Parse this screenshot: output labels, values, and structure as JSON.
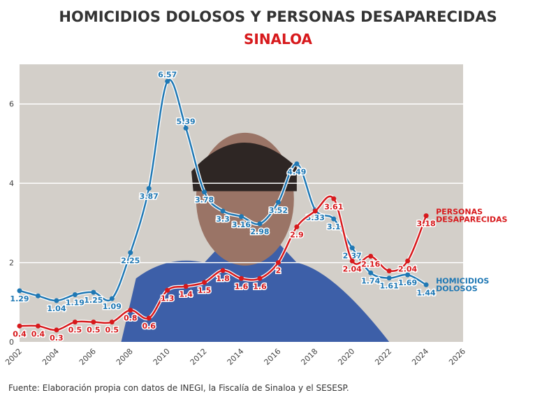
{
  "chart_data": {
    "type": "line",
    "title": "HOMICIDIOS DOLOSOS Y PERSONAS DESAPARECIDAS",
    "subtitle": "SINALOA",
    "x": [
      2002,
      2003,
      2004,
      2005,
      2006,
      2007,
      2008,
      2009,
      2010,
      2011,
      2012,
      2013,
      2014,
      2015,
      2016,
      2017,
      2018,
      2019,
      2020,
      2021,
      2022,
      2023,
      2024
    ],
    "xticks": [
      "2002",
      "2004",
      "2006",
      "2008",
      "2010",
      "2012",
      "2014",
      "2016",
      "2018",
      "2020",
      "2022",
      "2024",
      "2026"
    ],
    "yticks": [
      "0",
      "2",
      "4",
      "6"
    ],
    "xlim": [
      2002,
      2026
    ],
    "ylim": [
      0,
      7
    ],
    "grid": true,
    "series": [
      {
        "name": "HOMICIDIOS DOLOSOS",
        "color": "#1f78b4",
        "values": [
          1.29,
          1.16,
          1.04,
          1.19,
          1.25,
          1.09,
          2.25,
          3.87,
          6.57,
          5.39,
          3.78,
          3.3,
          3.16,
          2.98,
          3.52,
          4.49,
          3.33,
          3.1,
          2.37,
          1.74,
          1.61,
          1.69,
          1.44
        ],
        "labels": [
          "1.29",
          null,
          "1.04",
          "1.19",
          "1.25",
          "1.09",
          "2.25",
          "3.87",
          "6.57",
          "5.39",
          "3.78",
          "3.3",
          "3.16",
          "2.98",
          "3.52",
          "4.49",
          "3.33",
          "3.1",
          "2.37",
          "1.74",
          "1.61",
          "1.69",
          "1.44"
        ],
        "legend": [
          "HOMICIDIOS",
          "DOLOSOS"
        ]
      },
      {
        "name": "PERSONAS DESAPARECIDAS",
        "color": "#d7191c",
        "values": [
          0.4,
          0.4,
          0.3,
          0.5,
          0.5,
          0.5,
          0.8,
          0.6,
          1.3,
          1.4,
          1.5,
          1.8,
          1.6,
          1.6,
          2,
          2.9,
          3.3,
          3.61,
          2.04,
          2.16,
          1.79,
          2.04,
          3.18
        ],
        "labels": [
          "0.4",
          "0.4",
          "0.3",
          "0.5",
          "0.5",
          "0.5",
          "0.8",
          "0.6",
          "1.3",
          "1.4",
          "1.5",
          "1.8",
          "1.6",
          "1.6",
          "2",
          "2.9",
          null,
          "3.61",
          "2.04",
          "2.16",
          null,
          "2.04",
          "3.18"
        ],
        "legend": [
          "PERSONAS",
          "DESAPARECIDAS"
        ]
      }
    ]
  },
  "source": "Fuente: Elaboración propia con datos de INEGI, la Fiscalía de Sinaloa y el SESESP."
}
